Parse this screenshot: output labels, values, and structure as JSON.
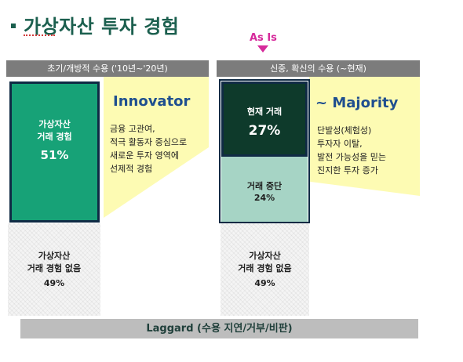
{
  "slide": {
    "title": "가상자산 투자 경험"
  },
  "marker": {
    "label": "As Is"
  },
  "left_column": {
    "header": "초기/개방적 수용 ('10년~'20년)",
    "box_label_1": "가상자산",
    "box_label_2": "거래 경험",
    "box_value": "51%",
    "rest_label_1": "가상자산",
    "rest_label_2": "거래 경험 없음",
    "rest_value": "49%",
    "segment": "Innovator",
    "description": [
      "금융 고관여,",
      "적극 활동자 중심으로",
      "새로운 투자 영역에",
      "선제적 경험"
    ]
  },
  "right_column": {
    "header": "신중, 확신의 수용 (~현재)",
    "current_label": "현재 거래",
    "current_value": "27%",
    "stopped_label": "거래 중단",
    "stopped_value": "24%",
    "rest_label_1": "가상자산",
    "rest_label_2": "거래 경험 없음",
    "rest_value": "49%",
    "segment": "~ Majority",
    "description": [
      "단발성(체험성)",
      "투자자 이탈,",
      "발전 가능성을 믿는",
      "진지한 투자 증가"
    ]
  },
  "footer": {
    "laggard": "Laggard (수용 지연/거부/비판)"
  },
  "colors": {
    "title": "#1b5f4e",
    "marker": "#d62a9b",
    "header_bg": "#7c7c7c",
    "box_green": "#17a277",
    "box_dark": "#0e3a2b",
    "box_teal": "#a6d4c5",
    "funnel": "#fdfbb3",
    "segment_text": "#1f4f8f",
    "laggard_bg": "#bdbdbd"
  }
}
